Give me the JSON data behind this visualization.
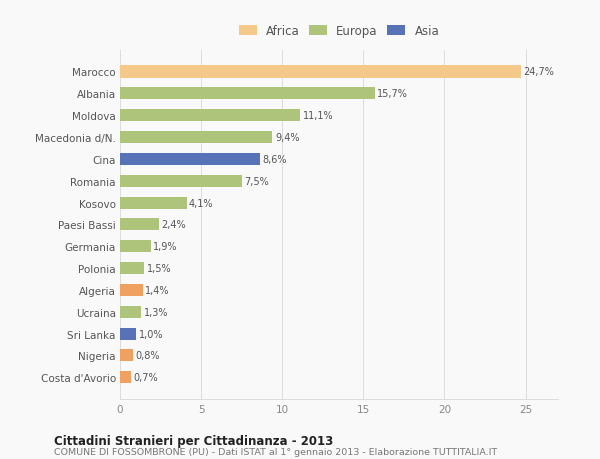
{
  "categories": [
    "Marocco",
    "Albania",
    "Moldova",
    "Macedonia d/N.",
    "Cina",
    "Romania",
    "Kosovo",
    "Paesi Bassi",
    "Germania",
    "Polonia",
    "Algeria",
    "Ucraina",
    "Sri Lanka",
    "Nigeria",
    "Costa d'Avorio"
  ],
  "values": [
    24.7,
    15.7,
    11.1,
    9.4,
    8.6,
    7.5,
    4.1,
    2.4,
    1.9,
    1.5,
    1.4,
    1.3,
    1.0,
    0.8,
    0.7
  ],
  "labels": [
    "24,7%",
    "15,7%",
    "11,1%",
    "9,4%",
    "8,6%",
    "7,5%",
    "4,1%",
    "2,4%",
    "1,9%",
    "1,5%",
    "1,4%",
    "1,3%",
    "1,0%",
    "0,8%",
    "0,7%"
  ],
  "colors": [
    "#f5c98a",
    "#adc47a",
    "#adc47a",
    "#adc47a",
    "#5872b8",
    "#adc47a",
    "#adc47a",
    "#adc47a",
    "#adc47a",
    "#adc47a",
    "#f0a060",
    "#adc47a",
    "#5872b8",
    "#f0a060",
    "#f0a060"
  ],
  "legend": [
    {
      "label": "Africa",
      "color": "#f5c98a"
    },
    {
      "label": "Europa",
      "color": "#adc47a"
    },
    {
      "label": "Asia",
      "color": "#5872b8"
    }
  ],
  "xlim": [
    0,
    27
  ],
  "xticks": [
    0,
    5,
    10,
    15,
    20,
    25
  ],
  "title": "Cittadini Stranieri per Cittadinanza - 2013",
  "subtitle": "COMUNE DI FOSSOMBRONE (PU) - Dati ISTAT al 1° gennaio 2013 - Elaborazione TUTTITALIA.IT",
  "bg_color": "#f9f9f9",
  "grid_color": "#dddddd",
  "bar_height": 0.55
}
